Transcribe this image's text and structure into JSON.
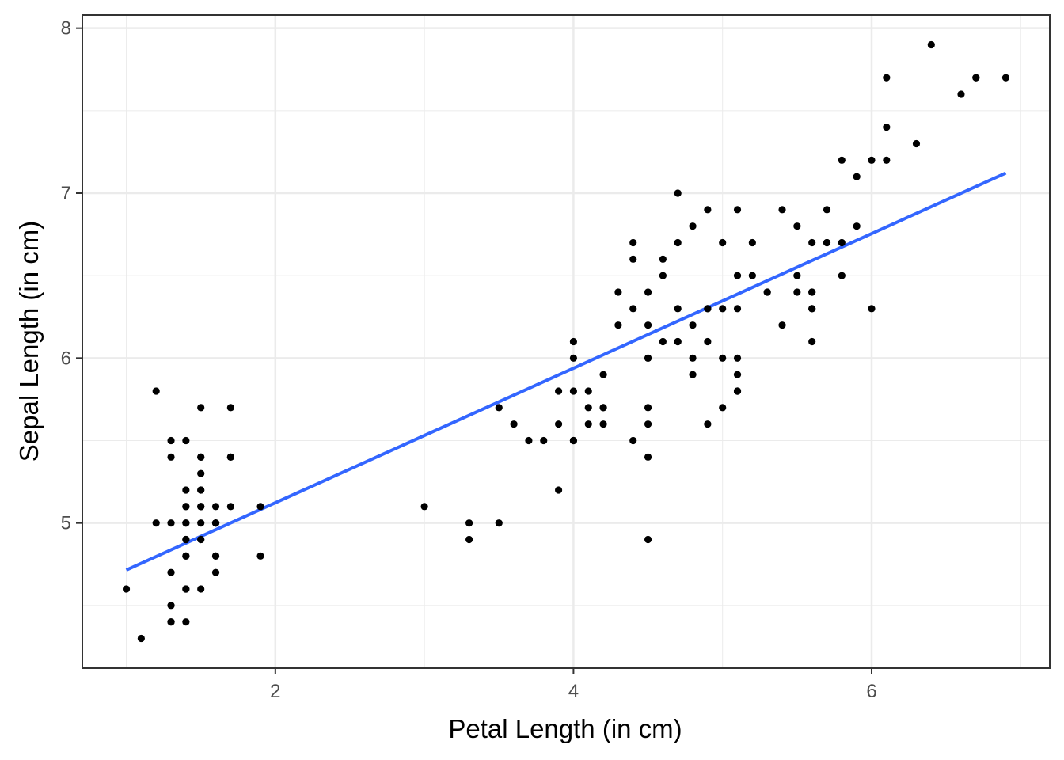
{
  "chart_data": {
    "type": "scatter",
    "title": "",
    "xlabel": "Petal Length (in cm)",
    "ylabel": "Sepal Length (in cm)",
    "xlim": [
      0.705,
      7.195
    ],
    "ylim": [
      4.12,
      8.08
    ],
    "x_ticks": [
      2,
      4,
      6
    ],
    "y_ticks": [
      5,
      6,
      7,
      8
    ],
    "x_tick_labels": [
      "2",
      "4",
      "6"
    ],
    "y_tick_labels": [
      "5",
      "6",
      "7",
      "8"
    ],
    "grid": true,
    "theme": "bw",
    "colors": {
      "points": "#000000",
      "fit_line": "#3366ff",
      "grid": "#ebebeb",
      "panel_border": "#333333"
    },
    "points": [
      [
        1.4,
        5.1
      ],
      [
        1.4,
        4.9
      ],
      [
        1.3,
        4.7
      ],
      [
        1.5,
        4.6
      ],
      [
        1.4,
        5.0
      ],
      [
        1.7,
        5.4
      ],
      [
        1.4,
        4.6
      ],
      [
        1.5,
        5.0
      ],
      [
        1.4,
        4.4
      ],
      [
        1.5,
        4.9
      ],
      [
        1.5,
        5.4
      ],
      [
        1.6,
        4.8
      ],
      [
        1.4,
        4.8
      ],
      [
        1.1,
        4.3
      ],
      [
        1.2,
        5.8
      ],
      [
        1.5,
        5.7
      ],
      [
        1.3,
        5.4
      ],
      [
        1.4,
        5.1
      ],
      [
        1.7,
        5.7
      ],
      [
        1.5,
        5.1
      ],
      [
        1.7,
        5.4
      ],
      [
        1.5,
        5.1
      ],
      [
        1.0,
        4.6
      ],
      [
        1.7,
        5.1
      ],
      [
        1.9,
        4.8
      ],
      [
        1.6,
        5.0
      ],
      [
        1.6,
        5.0
      ],
      [
        1.5,
        5.2
      ],
      [
        1.4,
        5.2
      ],
      [
        1.6,
        4.7
      ],
      [
        1.6,
        4.8
      ],
      [
        1.5,
        5.4
      ],
      [
        1.5,
        5.2
      ],
      [
        1.4,
        5.5
      ],
      [
        1.5,
        4.9
      ],
      [
        1.2,
        5.0
      ],
      [
        1.3,
        5.5
      ],
      [
        1.4,
        4.9
      ],
      [
        1.3,
        4.4
      ],
      [
        1.5,
        5.1
      ],
      [
        1.3,
        5.0
      ],
      [
        1.3,
        4.5
      ],
      [
        1.3,
        4.4
      ],
      [
        1.6,
        5.0
      ],
      [
        1.9,
        5.1
      ],
      [
        1.4,
        4.8
      ],
      [
        1.6,
        5.1
      ],
      [
        1.4,
        4.6
      ],
      [
        1.5,
        5.3
      ],
      [
        1.4,
        5.0
      ],
      [
        4.7,
        7.0
      ],
      [
        4.5,
        6.4
      ],
      [
        4.9,
        6.9
      ],
      [
        4.0,
        5.5
      ],
      [
        4.6,
        6.5
      ],
      [
        4.5,
        5.7
      ],
      [
        4.7,
        6.3
      ],
      [
        3.3,
        4.9
      ],
      [
        4.6,
        6.6
      ],
      [
        3.9,
        5.2
      ],
      [
        3.5,
        5.0
      ],
      [
        4.2,
        5.9
      ],
      [
        4.0,
        6.0
      ],
      [
        4.7,
        6.1
      ],
      [
        3.6,
        5.6
      ],
      [
        4.4,
        6.7
      ],
      [
        4.5,
        5.6
      ],
      [
        4.1,
        5.8
      ],
      [
        4.5,
        6.2
      ],
      [
        3.9,
        5.6
      ],
      [
        4.8,
        5.9
      ],
      [
        4.0,
        6.1
      ],
      [
        4.9,
        6.3
      ],
      [
        4.7,
        6.1
      ],
      [
        4.3,
        6.4
      ],
      [
        4.4,
        6.6
      ],
      [
        4.8,
        6.8
      ],
      [
        5.0,
        6.7
      ],
      [
        4.5,
        6.0
      ],
      [
        3.5,
        5.7
      ],
      [
        3.8,
        5.5
      ],
      [
        3.7,
        5.5
      ],
      [
        3.9,
        5.8
      ],
      [
        5.1,
        6.0
      ],
      [
        4.5,
        5.4
      ],
      [
        4.5,
        6.0
      ],
      [
        4.7,
        6.7
      ],
      [
        4.4,
        6.3
      ],
      [
        4.1,
        5.6
      ],
      [
        4.0,
        5.5
      ],
      [
        4.4,
        5.5
      ],
      [
        4.6,
        6.1
      ],
      [
        4.0,
        5.8
      ],
      [
        3.3,
        5.0
      ],
      [
        4.2,
        5.6
      ],
      [
        4.2,
        5.7
      ],
      [
        4.2,
        5.7
      ],
      [
        4.3,
        6.2
      ],
      [
        3.0,
        5.1
      ],
      [
        4.1,
        5.7
      ],
      [
        6.0,
        6.3
      ],
      [
        5.1,
        5.8
      ],
      [
        5.9,
        7.1
      ],
      [
        5.6,
        6.3
      ],
      [
        5.8,
        6.5
      ],
      [
        6.6,
        7.6
      ],
      [
        4.5,
        4.9
      ],
      [
        6.3,
        7.3
      ],
      [
        5.8,
        6.7
      ],
      [
        6.1,
        7.2
      ],
      [
        5.1,
        6.5
      ],
      [
        5.3,
        6.4
      ],
      [
        5.5,
        6.8
      ],
      [
        5.0,
        5.7
      ],
      [
        5.1,
        5.8
      ],
      [
        5.3,
        6.4
      ],
      [
        5.5,
        6.5
      ],
      [
        6.7,
        7.7
      ],
      [
        6.9,
        7.7
      ],
      [
        5.0,
        6.0
      ],
      [
        5.7,
        6.9
      ],
      [
        4.9,
        5.6
      ],
      [
        6.7,
        7.7
      ],
      [
        4.9,
        6.3
      ],
      [
        5.7,
        6.7
      ],
      [
        6.0,
        7.2
      ],
      [
        4.8,
        6.2
      ],
      [
        4.9,
        6.1
      ],
      [
        5.6,
        6.4
      ],
      [
        5.8,
        7.2
      ],
      [
        6.1,
        7.4
      ],
      [
        6.4,
        7.9
      ],
      [
        5.6,
        6.4
      ],
      [
        5.1,
        6.3
      ],
      [
        5.6,
        6.1
      ],
      [
        6.1,
        7.7
      ],
      [
        5.6,
        6.3
      ],
      [
        5.5,
        6.4
      ],
      [
        4.8,
        6.0
      ],
      [
        5.4,
        6.9
      ],
      [
        5.6,
        6.7
      ],
      [
        5.1,
        6.9
      ],
      [
        5.1,
        5.8
      ],
      [
        5.9,
        6.8
      ],
      [
        5.7,
        6.7
      ],
      [
        5.2,
        6.7
      ],
      [
        5.0,
        6.3
      ],
      [
        5.2,
        6.5
      ],
      [
        5.4,
        6.2
      ],
      [
        5.1,
        5.9
      ]
    ],
    "fit_line": {
      "method": "lm",
      "x": [
        1.0,
        6.9
      ],
      "y": [
        4.715,
        7.122
      ]
    }
  }
}
